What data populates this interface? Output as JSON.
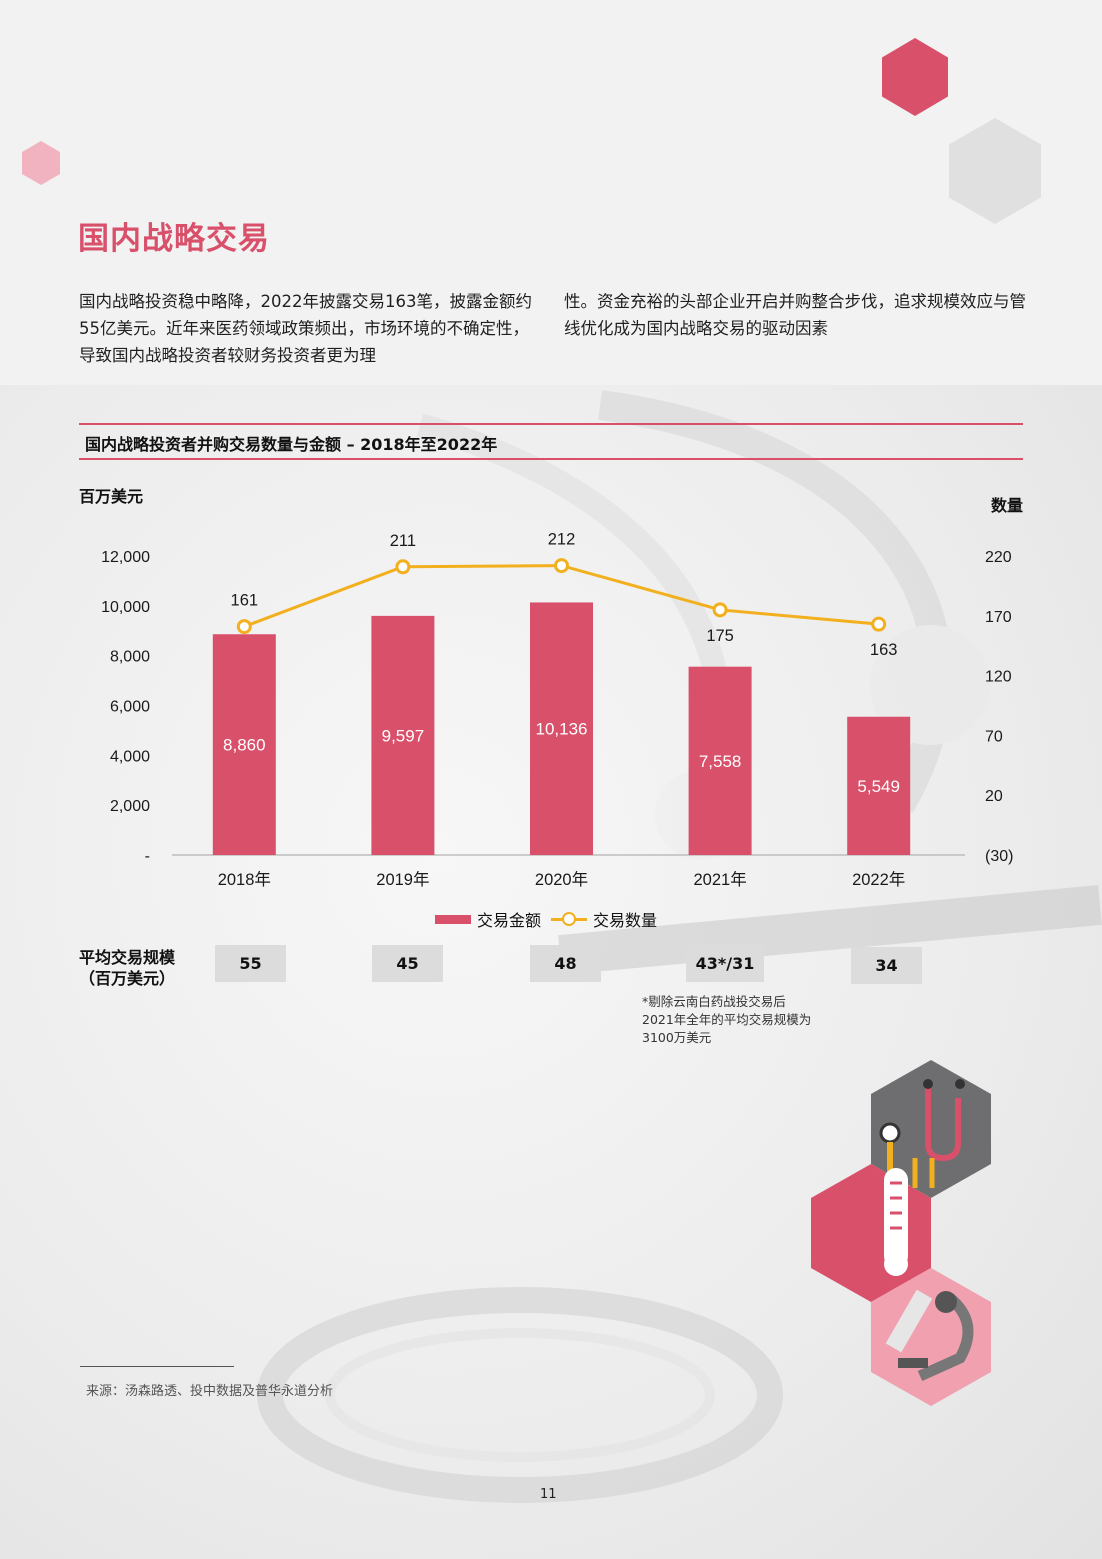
{
  "page": {
    "title": "国内战略交易",
    "intro_left": "国内战略投资稳中略降，2022年披露交易163笔，披露金额约55亿美元。近年来医药领域政策频出，市场环境的不确定性，导致国内战略投资者较财务投资者更为理",
    "intro_right": "性。资金充裕的头部企业开启并购整合步伐，追求规模效应与管线优化成为国内战略交易的驱动因素",
    "page_number": "11"
  },
  "colors": {
    "accent": "#d9506b",
    "line": "#f2b01e",
    "box": "#dcdcdc"
  },
  "chart_data": {
    "type": "bar",
    "title": "国内战略投资者并购交易数量与金额 – 2018年至2022年",
    "ylabel": "百万美元",
    "y2label": "数量",
    "categories": [
      "2018年",
      "2019年",
      "2020年",
      "2021年",
      "2022年"
    ],
    "ylim": [
      0,
      12000
    ],
    "y_ticks": [
      "-",
      "2,000",
      "4,000",
      "6,000",
      "8,000",
      "10,000",
      "12,000"
    ],
    "y2lim": [
      -30,
      220
    ],
    "y2_ticks": [
      "(30)",
      "20",
      "70",
      "120",
      "170",
      "220"
    ],
    "series": [
      {
        "name": "交易金额",
        "type": "bar",
        "values": [
          8860,
          9597,
          10136,
          7558,
          5549
        ],
        "labels": [
          "8,860",
          "9,597",
          "10,136",
          "7,558",
          "5,549"
        ]
      },
      {
        "name": "交易数量",
        "type": "line",
        "axis": "right",
        "values": [
          161,
          211,
          212,
          175,
          163
        ],
        "labels": [
          "161",
          "211",
          "212",
          "175",
          "163"
        ]
      }
    ],
    "legend": "bottom"
  },
  "avg": {
    "label_line1": "平均交易规模",
    "label_line2": "（百万美元）",
    "values": [
      "55",
      "45",
      "48",
      "43*/31",
      "34"
    ],
    "footnote": "*剔除云南白药战投交易后2021年全年的平均交易规模为3100万美元"
  },
  "source": "来源：汤森路透、投中数据及普华永道分析",
  "icons": [
    "stethoscope-icon",
    "thermometer-icon",
    "microscope-icon"
  ]
}
